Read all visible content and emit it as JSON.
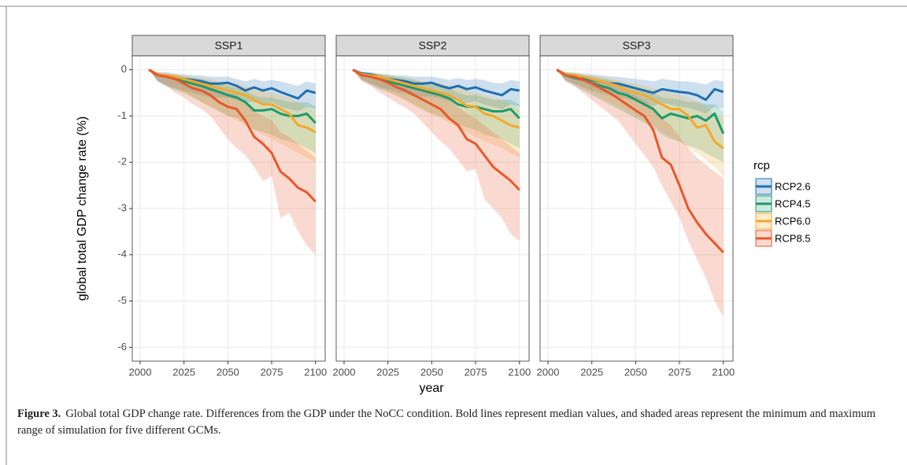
{
  "chart_data": [
    {
      "type": "line",
      "title": "SSP1",
      "x": [
        2005,
        2010,
        2015,
        2020,
        2025,
        2030,
        2035,
        2040,
        2045,
        2050,
        2055,
        2060,
        2065,
        2070,
        2075,
        2080,
        2085,
        2090,
        2095,
        2100
      ],
      "xlim": [
        1995.5,
        2105.5
      ],
      "xticks": [
        2000,
        2025,
        2050,
        2075,
        2100
      ],
      "ylim": [
        -6.3,
        0.3
      ],
      "yticks": [
        0,
        -1,
        -2,
        -3,
        -4,
        -5,
        -6
      ],
      "grid": true,
      "series": [
        {
          "name": "RCP2.6",
          "color": "#1f6fb0",
          "values": [
            0,
            -0.1,
            -0.12,
            -0.15,
            -0.2,
            -0.22,
            -0.25,
            -0.3,
            -0.3,
            -0.28,
            -0.35,
            -0.45,
            -0.38,
            -0.45,
            -0.4,
            -0.48,
            -0.55,
            -0.62,
            -0.45,
            -0.5
          ],
          "min": [
            0,
            -0.25,
            -0.35,
            -0.4,
            -0.45,
            -0.5,
            -0.55,
            -0.6,
            -0.6,
            -0.6,
            -0.65,
            -0.7,
            -0.7,
            -0.75,
            -0.7,
            -0.8,
            -0.85,
            -0.9,
            -0.8,
            -0.85
          ],
          "max": [
            0,
            -0.05,
            -0.05,
            -0.08,
            -0.1,
            -0.12,
            -0.12,
            -0.15,
            -0.15,
            -0.15,
            -0.2,
            -0.25,
            -0.2,
            -0.25,
            -0.22,
            -0.25,
            -0.3,
            -0.35,
            -0.25,
            -0.3
          ]
        },
        {
          "name": "RCP4.5",
          "color": "#1b9a6e",
          "values": [
            0,
            -0.12,
            -0.15,
            -0.2,
            -0.25,
            -0.3,
            -0.35,
            -0.42,
            -0.48,
            -0.55,
            -0.6,
            -0.7,
            -0.88,
            -0.88,
            -0.85,
            -0.95,
            -1.0,
            -1.0,
            -0.95,
            -1.15
          ],
          "min": [
            0,
            -0.25,
            -0.35,
            -0.45,
            -0.5,
            -0.6,
            -0.7,
            -0.8,
            -0.9,
            -1.0,
            -1.05,
            -1.15,
            -1.3,
            -1.35,
            -1.4,
            -1.5,
            -1.55,
            -1.6,
            -1.7,
            -1.8
          ],
          "max": [
            0,
            -0.08,
            -0.1,
            -0.12,
            -0.15,
            -0.18,
            -0.2,
            -0.25,
            -0.3,
            -0.35,
            -0.4,
            -0.45,
            -0.55,
            -0.6,
            -0.6,
            -0.65,
            -0.7,
            -0.7,
            -0.7,
            -0.8
          ]
        },
        {
          "name": "RCP6.0",
          "color": "#f4a82a",
          "values": [
            0,
            -0.1,
            -0.12,
            -0.15,
            -0.2,
            -0.25,
            -0.3,
            -0.35,
            -0.4,
            -0.45,
            -0.5,
            -0.55,
            -0.65,
            -0.75,
            -0.75,
            -0.85,
            -0.95,
            -1.2,
            -1.25,
            -1.35
          ],
          "min": [
            0,
            -0.2,
            -0.3,
            -0.4,
            -0.5,
            -0.6,
            -0.7,
            -0.8,
            -0.9,
            -1.0,
            -1.1,
            -1.2,
            -1.3,
            -1.4,
            -1.5,
            -1.6,
            -1.7,
            -1.8,
            -1.9,
            -2.0
          ],
          "max": [
            0,
            -0.05,
            -0.08,
            -0.1,
            -0.12,
            -0.15,
            -0.18,
            -0.2,
            -0.25,
            -0.3,
            -0.3,
            -0.35,
            -0.4,
            -0.45,
            -0.5,
            -0.55,
            -0.6,
            -0.7,
            -0.8,
            -0.9
          ]
        },
        {
          "name": "RCP8.5",
          "color": "#e9572a",
          "values": [
            0,
            -0.12,
            -0.15,
            -0.2,
            -0.3,
            -0.4,
            -0.45,
            -0.55,
            -0.7,
            -0.8,
            -0.85,
            -1.1,
            -1.45,
            -1.6,
            -1.8,
            -2.2,
            -2.35,
            -2.55,
            -2.65,
            -2.85
          ],
          "min": [
            0,
            -0.25,
            -0.35,
            -0.5,
            -0.6,
            -0.75,
            -0.85,
            -1.0,
            -1.25,
            -1.5,
            -1.7,
            -1.85,
            -2.1,
            -2.4,
            -2.3,
            -3.2,
            -3.1,
            -3.5,
            -3.8,
            -4.0
          ],
          "max": [
            0,
            -0.08,
            -0.1,
            -0.12,
            -0.18,
            -0.25,
            -0.3,
            -0.35,
            -0.45,
            -0.5,
            -0.55,
            -0.7,
            -0.9,
            -1.0,
            -1.1,
            -1.35,
            -1.45,
            -1.6,
            -1.75,
            -1.9
          ]
        }
      ]
    },
    {
      "type": "line",
      "title": "SSP2",
      "x": [
        2005,
        2010,
        2015,
        2020,
        2025,
        2030,
        2035,
        2040,
        2045,
        2050,
        2055,
        2060,
        2065,
        2070,
        2075,
        2080,
        2085,
        2090,
        2095,
        2100
      ],
      "xlim": [
        1995.5,
        2105.5
      ],
      "xticks": [
        2000,
        2025,
        2050,
        2075,
        2100
      ],
      "ylim": [
        -6.3,
        0.3
      ],
      "yticks": [
        0,
        -1,
        -2,
        -3,
        -4,
        -5,
        -6
      ],
      "grid": true,
      "series": [
        {
          "name": "RCP2.6",
          "color": "#1f6fb0",
          "values": [
            0,
            -0.08,
            -0.1,
            -0.15,
            -0.2,
            -0.22,
            -0.25,
            -0.3,
            -0.3,
            -0.28,
            -0.35,
            -0.4,
            -0.35,
            -0.42,
            -0.38,
            -0.45,
            -0.5,
            -0.55,
            -0.42,
            -0.45
          ],
          "min": [
            0,
            -0.22,
            -0.3,
            -0.38,
            -0.42,
            -0.48,
            -0.52,
            -0.58,
            -0.58,
            -0.58,
            -0.62,
            -0.68,
            -0.65,
            -0.72,
            -0.68,
            -0.75,
            -0.8,
            -0.85,
            -0.75,
            -0.8
          ],
          "max": [
            0,
            -0.04,
            -0.05,
            -0.08,
            -0.1,
            -0.12,
            -0.12,
            -0.15,
            -0.15,
            -0.15,
            -0.18,
            -0.22,
            -0.18,
            -0.22,
            -0.2,
            -0.22,
            -0.28,
            -0.3,
            -0.22,
            -0.25
          ]
        },
        {
          "name": "RCP4.5",
          "color": "#1b9a6e",
          "values": [
            0,
            -0.1,
            -0.15,
            -0.2,
            -0.25,
            -0.3,
            -0.35,
            -0.4,
            -0.45,
            -0.5,
            -0.55,
            -0.62,
            -0.75,
            -0.8,
            -0.8,
            -0.85,
            -0.9,
            -0.9,
            -0.85,
            -1.05
          ],
          "min": [
            0,
            -0.22,
            -0.32,
            -0.42,
            -0.48,
            -0.55,
            -0.65,
            -0.75,
            -0.85,
            -0.95,
            -1.0,
            -1.1,
            -1.2,
            -1.25,
            -1.3,
            -1.4,
            -1.45,
            -1.5,
            -1.6,
            -1.7
          ],
          "max": [
            0,
            -0.06,
            -0.08,
            -0.1,
            -0.12,
            -0.15,
            -0.18,
            -0.22,
            -0.28,
            -0.32,
            -0.35,
            -0.4,
            -0.5,
            -0.55,
            -0.55,
            -0.6,
            -0.65,
            -0.65,
            -0.65,
            -0.75
          ]
        },
        {
          "name": "RCP6.0",
          "color": "#f4a82a",
          "values": [
            0,
            -0.1,
            -0.12,
            -0.15,
            -0.2,
            -0.25,
            -0.3,
            -0.35,
            -0.4,
            -0.45,
            -0.5,
            -0.55,
            -0.65,
            -0.78,
            -0.8,
            -0.95,
            -1.0,
            -1.1,
            -1.2,
            -1.25
          ],
          "min": [
            0,
            -0.2,
            -0.28,
            -0.38,
            -0.48,
            -0.58,
            -0.68,
            -0.78,
            -0.88,
            -0.98,
            -1.05,
            -1.15,
            -1.25,
            -1.35,
            -1.45,
            -1.55,
            -1.62,
            -1.7,
            -1.8,
            -1.9
          ],
          "max": [
            0,
            -0.05,
            -0.07,
            -0.1,
            -0.12,
            -0.15,
            -0.18,
            -0.2,
            -0.25,
            -0.28,
            -0.3,
            -0.35,
            -0.4,
            -0.45,
            -0.5,
            -0.55,
            -0.6,
            -0.65,
            -0.75,
            -0.85
          ]
        },
        {
          "name": "RCP8.5",
          "color": "#e9572a",
          "values": [
            0,
            -0.12,
            -0.15,
            -0.2,
            -0.28,
            -0.38,
            -0.45,
            -0.55,
            -0.65,
            -0.75,
            -0.85,
            -1.05,
            -1.2,
            -1.5,
            -1.6,
            -1.85,
            -2.1,
            -2.25,
            -2.4,
            -2.6
          ],
          "min": [
            0,
            -0.25,
            -0.35,
            -0.48,
            -0.6,
            -0.72,
            -0.82,
            -0.95,
            -1.15,
            -1.35,
            -1.55,
            -1.7,
            -1.95,
            -2.2,
            -2.15,
            -2.8,
            -3.0,
            -3.2,
            -3.55,
            -3.7
          ],
          "max": [
            0,
            -0.08,
            -0.1,
            -0.12,
            -0.18,
            -0.22,
            -0.28,
            -0.35,
            -0.42,
            -0.48,
            -0.55,
            -0.65,
            -0.8,
            -0.95,
            -1.05,
            -1.2,
            -1.35,
            -1.5,
            -1.65,
            -1.8
          ]
        }
      ]
    },
    {
      "type": "line",
      "title": "SSP3",
      "x": [
        2005,
        2010,
        2015,
        2020,
        2025,
        2030,
        2035,
        2040,
        2045,
        2050,
        2055,
        2060,
        2065,
        2070,
        2075,
        2080,
        2085,
        2090,
        2095,
        2100
      ],
      "xlim": [
        1995.5,
        2105.5
      ],
      "xticks": [
        2000,
        2025,
        2050,
        2075,
        2100
      ],
      "ylim": [
        -6.3,
        0.3
      ],
      "yticks": [
        0,
        -1,
        -2,
        -3,
        -4,
        -5,
        -6
      ],
      "grid": true,
      "series": [
        {
          "name": "RCP2.6",
          "color": "#1f6fb0",
          "values": [
            0,
            -0.1,
            -0.12,
            -0.18,
            -0.22,
            -0.25,
            -0.3,
            -0.3,
            -0.35,
            -0.4,
            -0.45,
            -0.5,
            -0.42,
            -0.45,
            -0.48,
            -0.5,
            -0.55,
            -0.65,
            -0.42,
            -0.48
          ],
          "min": [
            0,
            -0.22,
            -0.3,
            -0.38,
            -0.45,
            -0.5,
            -0.55,
            -0.6,
            -0.62,
            -0.68,
            -0.72,
            -0.78,
            -0.72,
            -0.75,
            -0.8,
            -0.82,
            -0.88,
            -0.95,
            -0.8,
            -0.85
          ],
          "max": [
            0,
            -0.05,
            -0.06,
            -0.08,
            -0.1,
            -0.12,
            -0.14,
            -0.15,
            -0.18,
            -0.2,
            -0.22,
            -0.25,
            -0.2,
            -0.22,
            -0.25,
            -0.25,
            -0.28,
            -0.32,
            -0.22,
            -0.25
          ]
        },
        {
          "name": "RCP4.5",
          "color": "#1b9a6e",
          "values": [
            0,
            -0.12,
            -0.18,
            -0.22,
            -0.28,
            -0.35,
            -0.4,
            -0.5,
            -0.55,
            -0.65,
            -0.75,
            -0.85,
            -1.05,
            -0.95,
            -1.0,
            -1.05,
            -1.0,
            -1.1,
            -0.95,
            -1.38
          ],
          "min": [
            0,
            -0.25,
            -0.35,
            -0.45,
            -0.55,
            -0.65,
            -0.75,
            -0.85,
            -0.95,
            -1.05,
            -1.15,
            -1.25,
            -1.4,
            -1.5,
            -1.55,
            -1.65,
            -1.7,
            -1.8,
            -1.9,
            -2.0
          ],
          "max": [
            0,
            -0.06,
            -0.08,
            -0.12,
            -0.15,
            -0.18,
            -0.22,
            -0.28,
            -0.32,
            -0.38,
            -0.42,
            -0.5,
            -0.6,
            -0.62,
            -0.65,
            -0.7,
            -0.7,
            -0.75,
            -0.75,
            -0.9
          ]
        },
        {
          "name": "RCP6.0",
          "color": "#f4a82a",
          "values": [
            0,
            -0.1,
            -0.12,
            -0.15,
            -0.2,
            -0.25,
            -0.3,
            -0.35,
            -0.45,
            -0.5,
            -0.55,
            -0.65,
            -0.75,
            -0.85,
            -0.85,
            -1.0,
            -1.25,
            -1.2,
            -1.55,
            -1.7
          ],
          "min": [
            0,
            -0.2,
            -0.3,
            -0.4,
            -0.5,
            -0.6,
            -0.7,
            -0.8,
            -0.9,
            -1.0,
            -1.1,
            -1.2,
            -1.35,
            -1.45,
            -1.55,
            -1.7,
            -1.8,
            -1.95,
            -2.1,
            -2.3
          ],
          "max": [
            0,
            -0.05,
            -0.07,
            -0.1,
            -0.12,
            -0.15,
            -0.18,
            -0.22,
            -0.28,
            -0.3,
            -0.35,
            -0.4,
            -0.45,
            -0.5,
            -0.55,
            -0.6,
            -0.7,
            -0.8,
            -0.95,
            -1.05
          ]
        },
        {
          "name": "RCP8.5",
          "color": "#e9572a",
          "values": [
            0,
            -0.12,
            -0.15,
            -0.22,
            -0.3,
            -0.4,
            -0.5,
            -0.62,
            -0.75,
            -0.88,
            -1.0,
            -1.3,
            -1.9,
            -2.05,
            -2.5,
            -3.0,
            -3.3,
            -3.55,
            -3.75,
            -3.95
          ],
          "min": [
            0,
            -0.25,
            -0.35,
            -0.5,
            -0.65,
            -0.8,
            -0.95,
            -1.1,
            -1.35,
            -1.6,
            -1.85,
            -2.1,
            -2.5,
            -2.85,
            -3.2,
            -3.7,
            -4.1,
            -4.5,
            -5.0,
            -5.35
          ],
          "max": [
            0,
            -0.08,
            -0.1,
            -0.14,
            -0.2,
            -0.26,
            -0.32,
            -0.4,
            -0.48,
            -0.56,
            -0.65,
            -0.8,
            -1.05,
            -1.2,
            -1.45,
            -1.7,
            -1.9,
            -2.05,
            -2.2,
            -2.35
          ]
        }
      ]
    }
  ],
  "xlabel": "year",
  "ylabel": "global total GDP change rate (%)",
  "legend_title": "rcp",
  "caption": {
    "label": "Figure 3.",
    "text": "Global total GDP change rate. Differences from the GDP under the NoCC condition. Bold lines represent median values, and shaded areas represent the minimum and maximum range of simulation for five different GCMs."
  }
}
